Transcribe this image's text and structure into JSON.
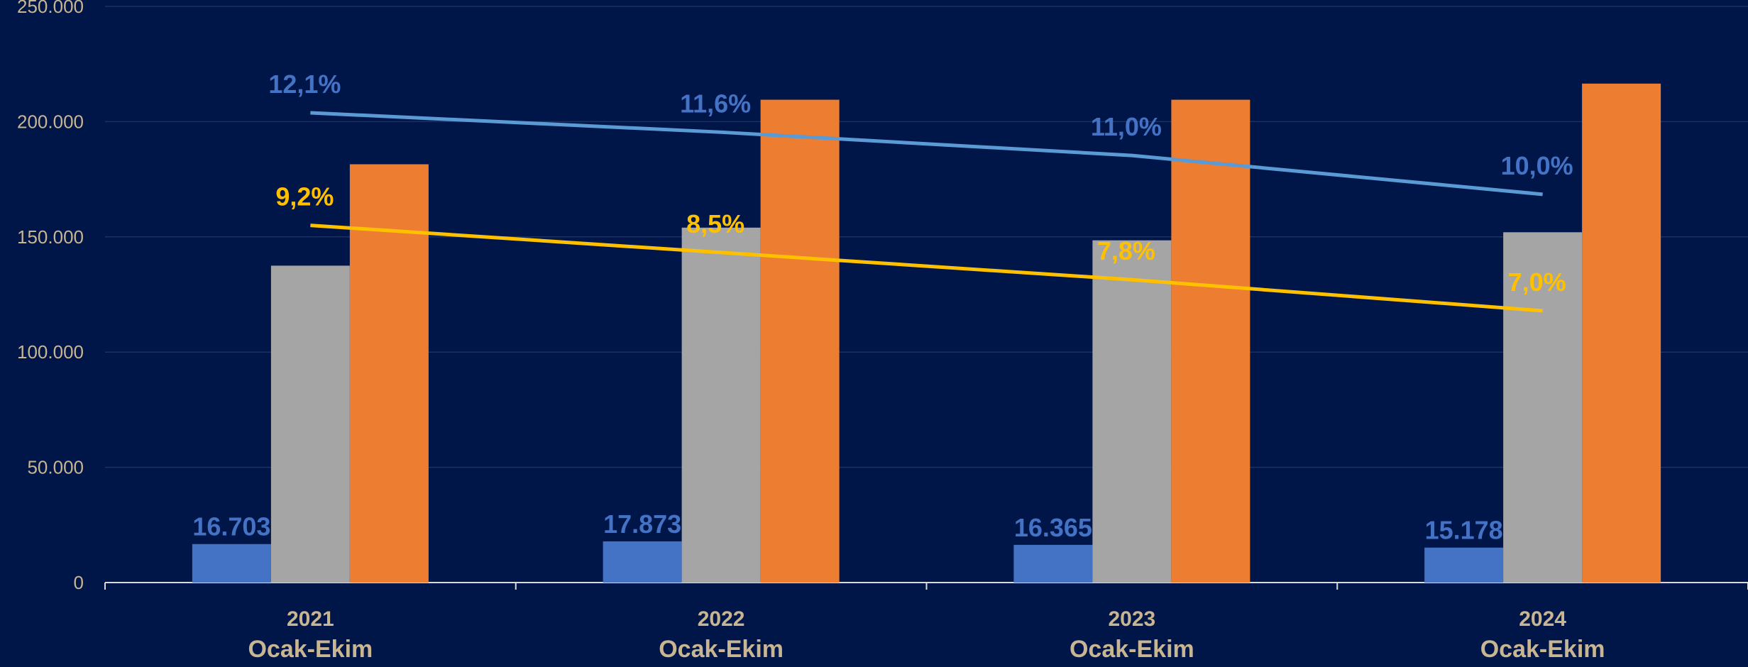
{
  "chart_data": {
    "type": "bar",
    "categories": [
      {
        "year": "2021",
        "period": "Ocak-Ekim"
      },
      {
        "year": "2022",
        "period": "Ocak-Ekim"
      },
      {
        "year": "2023",
        "period": "Ocak-Ekim"
      },
      {
        "year": "2024",
        "period": "Ocak-Ekim"
      }
    ],
    "ylim": [
      0,
      250000
    ],
    "yticks": [
      {
        "value": 0,
        "label": "0"
      },
      {
        "value": 50000,
        "label": "50.000"
      },
      {
        "value": 100000,
        "label": "100.000"
      },
      {
        "value": 150000,
        "label": "150.000"
      },
      {
        "value": 200000,
        "label": "200.000"
      },
      {
        "value": 250000,
        "label": "250.000"
      }
    ],
    "grid": true,
    "series": [
      {
        "kind": "bar",
        "color": "#4472C4",
        "values": [
          16703,
          17873,
          16365,
          15178
        ],
        "labels": [
          "16.703",
          "17.873",
          "16.365",
          "15.178"
        ],
        "label_color": "#4472C4"
      },
      {
        "kind": "bar",
        "color": "#A5A5A5",
        "values": [
          137500,
          154000,
          148500,
          152000
        ]
      },
      {
        "kind": "bar",
        "color": "#ED7D31",
        "values": [
          181500,
          209500,
          209500,
          216500
        ]
      },
      {
        "kind": "line",
        "color": "#5B9BD5",
        "values": [
          12.1,
          11.6,
          11.0,
          10.0
        ],
        "labels": [
          "12,1%",
          "11,6%",
          "11,0%",
          "10,0%"
        ],
        "label_color": "#4472C4"
      },
      {
        "kind": "line",
        "color": "#FFC000",
        "values": [
          9.2,
          8.5,
          7.8,
          7.0
        ],
        "labels": [
          "9,2%",
          "8,5%",
          "7,8%",
          "7,0%"
        ],
        "label_color": "#FFC000"
      }
    ],
    "colors": {
      "background": "#001548",
      "axis_text": "#C8B592",
      "category_text": "#C8B592",
      "gridline": "#1E3060",
      "axis_line": "#D9D9D9"
    }
  }
}
